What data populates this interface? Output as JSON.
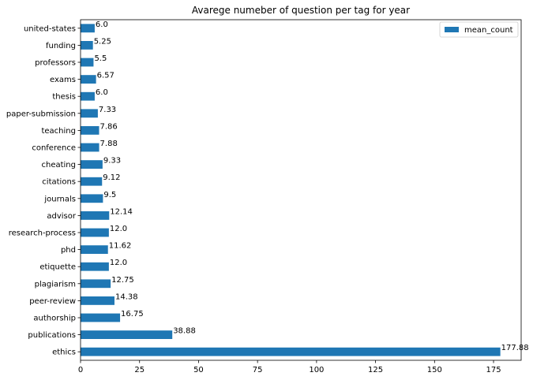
{
  "chart_data": {
    "type": "bar",
    "orientation": "horizontal",
    "title": "Avarege numeber of question per tag for year",
    "xlabel": "",
    "ylabel": "",
    "xlim": [
      0,
      186.7
    ],
    "xticks": [
      0,
      25,
      50,
      75,
      100,
      125,
      150,
      175
    ],
    "grid": false,
    "legend_position": "top-right",
    "categories": [
      "ethics",
      "publications",
      "authorship",
      "peer-review",
      "plagiarism",
      "etiquette",
      "phd",
      "research-process",
      "advisor",
      "journals",
      "citations",
      "cheating",
      "conference",
      "teaching",
      "paper-submission",
      "thesis",
      "exams",
      "professors",
      "funding",
      "united-states"
    ],
    "series": [
      {
        "name": "mean_count",
        "color": "#1f77b4",
        "values": [
          177.88,
          38.88,
          16.75,
          14.38,
          12.75,
          12.0,
          11.62,
          12.0,
          12.14,
          9.5,
          9.12,
          9.33,
          7.88,
          7.86,
          7.33,
          6.0,
          6.57,
          5.5,
          5.25,
          6.0
        ],
        "labels": [
          "177.88",
          "38.88",
          "16.75",
          "14.38",
          "12.75",
          "12.0",
          "11.62",
          "12.0",
          "12.14",
          "9.5",
          "9.12",
          "9.33",
          "7.88",
          "7.86",
          "7.33",
          "6.0",
          "6.57",
          "5.5",
          "5.25",
          "6.0"
        ]
      }
    ]
  }
}
